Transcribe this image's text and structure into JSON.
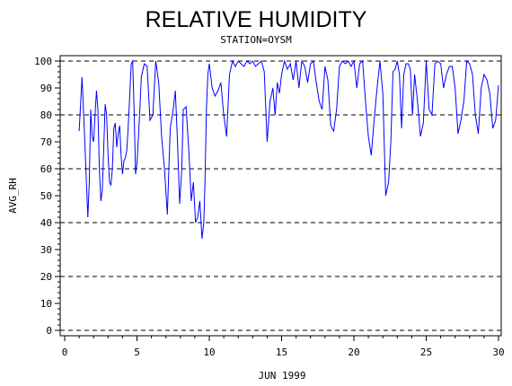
{
  "chart_data": {
    "type": "line",
    "title": "RELATIVE HUMIDITY",
    "subtitle": "STATION=OYSM",
    "xlabel": "JUN 1999",
    "ylabel": "AVG_RH",
    "xlim": [
      0,
      30
    ],
    "ylim": [
      0,
      100
    ],
    "xticks": [
      0,
      5,
      10,
      15,
      20,
      25,
      30
    ],
    "yticks": [
      0,
      10,
      20,
      30,
      40,
      50,
      60,
      70,
      80,
      90,
      100
    ],
    "grid": {
      "y": [
        0,
        20,
        40,
        60,
        80,
        100
      ],
      "style": "dashed"
    },
    "series": [
      {
        "color": "#0000ff",
        "x": [
          1.0,
          1.2,
          1.35,
          1.5,
          1.6,
          1.7,
          1.8,
          1.9,
          2.0,
          2.1,
          2.2,
          2.3,
          2.4,
          2.5,
          2.6,
          2.7,
          2.8,
          2.9,
          3.0,
          3.1,
          3.2,
          3.3,
          3.4,
          3.5,
          3.6,
          3.7,
          3.8,
          3.9,
          4.0,
          4.1,
          4.2,
          4.3,
          4.4,
          4.5,
          4.6,
          4.7,
          4.8,
          4.9,
          5.0,
          5.1,
          5.2,
          5.3,
          5.5,
          5.7,
          5.9,
          6.1,
          6.3,
          6.5,
          6.7,
          6.9,
          7.1,
          7.3,
          7.5,
          7.65,
          7.8,
          7.95,
          8.1,
          8.2,
          8.4,
          8.6,
          8.75,
          8.9,
          9.05,
          9.2,
          9.35,
          9.5,
          9.62,
          9.7,
          9.8,
          9.9,
          10.0,
          10.2,
          10.4,
          10.6,
          10.8,
          11.0,
          11.2,
          11.4,
          11.6,
          11.8,
          12.0,
          12.2,
          12.4,
          12.6,
          12.8,
          13.0,
          13.2,
          13.4,
          13.6,
          13.8,
          14.0,
          14.2,
          14.4,
          14.55,
          14.7,
          14.85,
          15.0,
          15.2,
          15.4,
          15.6,
          15.8,
          16.0,
          16.2,
          16.4,
          16.6,
          16.8,
          17.0,
          17.2,
          17.4,
          17.6,
          17.8,
          18.0,
          18.2,
          18.4,
          18.6,
          18.8,
          19.0,
          19.2,
          19.4,
          19.6,
          19.8,
          20.0,
          20.2,
          20.4,
          20.6,
          20.8,
          21.0,
          21.2,
          21.4,
          21.6,
          21.8,
          22.0,
          22.2,
          22.4,
          22.55,
          22.7,
          22.85,
          23.0,
          23.15,
          23.3,
          23.45,
          23.6,
          23.75,
          23.9,
          24.05,
          24.2,
          24.4,
          24.6,
          24.8,
          25.0,
          25.2,
          25.4,
          25.6,
          25.8,
          26.0,
          26.2,
          26.4,
          26.6,
          26.8,
          27.0,
          27.2,
          27.4,
          27.6,
          27.8,
          28.0,
          28.2,
          28.4,
          28.6,
          28.8,
          29.0,
          29.2,
          29.4,
          29.6,
          29.8,
          30.0
        ],
        "y": [
          74,
          94,
          76,
          55,
          42,
          55,
          82,
          72,
          70,
          80,
          89,
          82,
          60,
          48,
          52,
          68,
          84,
          80,
          65,
          55,
          54,
          60,
          75,
          77,
          68,
          73,
          76,
          65,
          58,
          63,
          64,
          67,
          76,
          87,
          99,
          100,
          82,
          58,
          62,
          72,
          82,
          94,
          99,
          98,
          78,
          80,
          100,
          92,
          72,
          60,
          43,
          75,
          82,
          89,
          70,
          47,
          60,
          82,
          83,
          65,
          48,
          55,
          40,
          42,
          48,
          34,
          40,
          55,
          82,
          95,
          99,
          90,
          87,
          89,
          92,
          80,
          72,
          95,
          100,
          98,
          100,
          99,
          98,
          100,
          99,
          100,
          98,
          99,
          100,
          96,
          70,
          85,
          90,
          80,
          92,
          88,
          95,
          100,
          97,
          99,
          93,
          100,
          90,
          100,
          98,
          92,
          99,
          100,
          92,
          85,
          82,
          98,
          93,
          76,
          74,
          82,
          98,
          100,
          99,
          100,
          98,
          100,
          90,
          99,
          100,
          85,
          72,
          65,
          78,
          90,
          100,
          88,
          50,
          55,
          70,
          96,
          97,
          100,
          95,
          75,
          95,
          99,
          99,
          97,
          80,
          95,
          85,
          72,
          77,
          100,
          82,
          80,
          99,
          100,
          99,
          90,
          95,
          98,
          98,
          90,
          73,
          78,
          85,
          100,
          99,
          95,
          80,
          73,
          90,
          95,
          93,
          88,
          75,
          78,
          91
        ]
      }
    ]
  }
}
